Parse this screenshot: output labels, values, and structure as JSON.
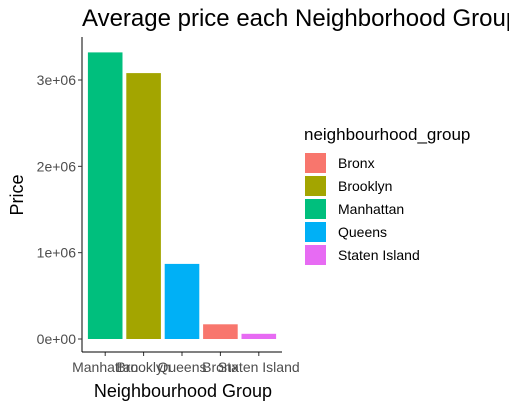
{
  "chart_data": {
    "type": "bar",
    "title": "Average price each Neighborhood Group",
    "xlabel": "Neighbourhood Group",
    "ylabel": "Price",
    "categories": [
      "Manhattan",
      "Brooklyn",
      "Queens",
      "Bronx",
      "Staten Island"
    ],
    "values": [
      3320000,
      3080000,
      870000,
      170000,
      60000
    ],
    "ylim": [
      0,
      3500000
    ],
    "yticks": [
      0,
      1000000,
      2000000,
      3000000
    ],
    "ytick_labels": [
      "0e+00",
      "1e+06",
      "2e+06",
      "3e+06"
    ],
    "grid": false,
    "legend": {
      "title": "neighbourhood_group",
      "placement": "right",
      "entries": [
        {
          "label": "Bronx",
          "color": "#F8766D"
        },
        {
          "label": "Brooklyn",
          "color": "#A3A500"
        },
        {
          "label": "Manhattan",
          "color": "#00BF7D"
        },
        {
          "label": "Queens",
          "color": "#00B0F6"
        },
        {
          "label": "Staten Island",
          "color": "#E76BF3"
        }
      ]
    },
    "bar_colors": {
      "Bronx": "#F8766D",
      "Brooklyn": "#A3A500",
      "Manhattan": "#00BF7D",
      "Queens": "#00B0F6",
      "Staten Island": "#E76BF3"
    }
  }
}
